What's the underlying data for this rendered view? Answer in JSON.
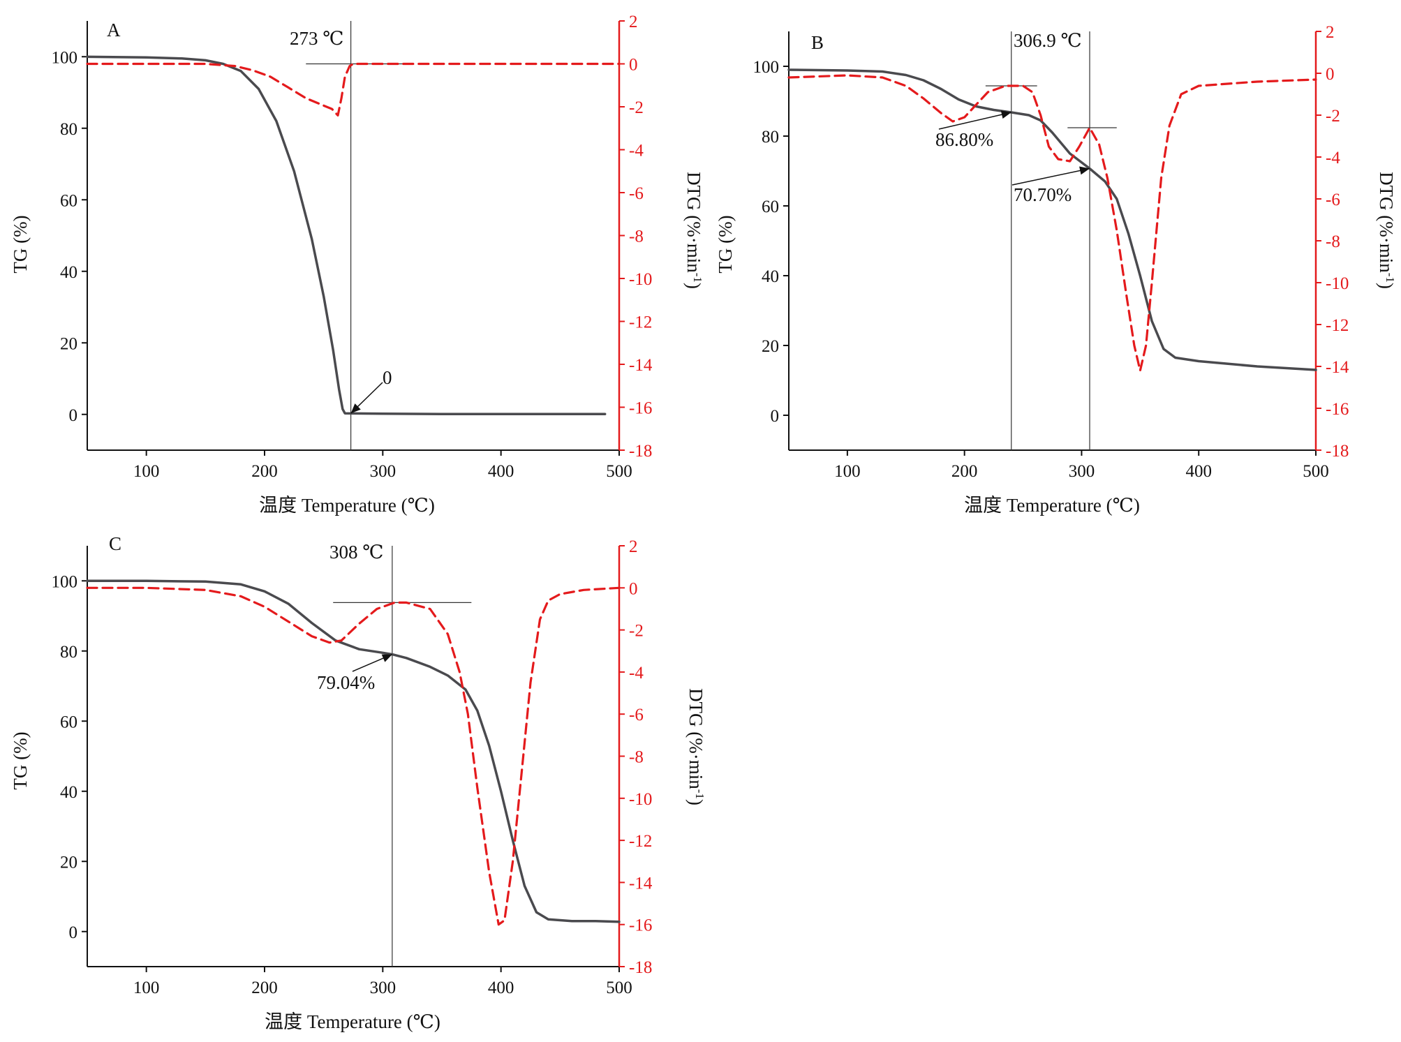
{
  "colors": {
    "tg": "#4a4a4e",
    "dtg": "#e41a1c",
    "axis": "#111111",
    "guide": "#333333"
  },
  "chart_data": [
    {
      "type": "line",
      "panel": "A",
      "xlabel": "温度 Temperature (℃)",
      "ylabel": "TG (%)",
      "y2label": "DTG (%·min-1)",
      "xlim": [
        50,
        500
      ],
      "ylim": [
        -10,
        110
      ],
      "y2lim": [
        -18,
        2
      ],
      "xticks": [
        100,
        200,
        300,
        400,
        500
      ],
      "yticks": [
        0,
        20,
        40,
        60,
        80,
        100
      ],
      "y2ticks": [
        2,
        0,
        -2,
        -4,
        -6,
        -8,
        -10,
        -12,
        -14,
        -16,
        -18
      ],
      "annotations": [
        "273 ℃",
        "0"
      ],
      "series": [
        {
          "role": "TG",
          "axis": "left",
          "style": "solid",
          "x": [
            50,
            100,
            130,
            150,
            165,
            180,
            195,
            210,
            225,
            240,
            250,
            258,
            263,
            266,
            268,
            300,
            350,
            400,
            450,
            488
          ],
          "y": [
            100,
            99.8,
            99.5,
            99,
            98,
            96,
            91,
            82,
            68,
            49,
            33,
            18,
            7,
            1.5,
            0.3,
            0.2,
            0.1,
            0.1,
            0.1,
            0.1
          ]
        },
        {
          "role": "DTG",
          "axis": "right",
          "style": "dashed",
          "x": [
            50,
            100,
            150,
            175,
            190,
            205,
            220,
            235,
            248,
            257,
            262,
            265,
            268,
            272,
            275,
            300,
            400,
            500
          ],
          "y": [
            0,
            0,
            0,
            -0.1,
            -0.3,
            -0.6,
            -1.1,
            -1.6,
            -1.9,
            -2.1,
            -2.4,
            -1.6,
            -0.6,
            -0.1,
            0,
            0,
            0,
            0
          ]
        }
      ],
      "guides": {
        "vline_x": 273,
        "hline_y2": 0,
        "hline_x": [
          235,
          322
        ]
      }
    },
    {
      "type": "line",
      "panel": "B",
      "xlabel": "温度 Temperature (℃)",
      "ylabel": "TG (%)",
      "y2label": "DTG (%·min-1)",
      "xlim": [
        50,
        500
      ],
      "ylim": [
        -10,
        110
      ],
      "y2lim": [
        -18,
        2
      ],
      "xticks": [
        100,
        200,
        300,
        400,
        500
      ],
      "yticks": [
        0,
        20,
        40,
        60,
        80,
        100
      ],
      "y2ticks": [
        2,
        0,
        -2,
        -4,
        -6,
        -8,
        -10,
        -12,
        -14,
        -16,
        -18
      ],
      "annotations": [
        "306.9 ℃",
        "86.80%",
        "70.70%"
      ],
      "series": [
        {
          "role": "TG",
          "axis": "left",
          "style": "solid",
          "x": [
            50,
            100,
            130,
            150,
            165,
            180,
            195,
            210,
            225,
            240,
            255,
            265,
            275,
            290,
            306.9,
            320,
            330,
            340,
            350,
            360,
            370,
            380,
            400,
            450,
            500
          ],
          "y": [
            99,
            98.8,
            98.5,
            97.5,
            96,
            93.5,
            90.5,
            88.5,
            87.5,
            86.8,
            86,
            84.5,
            81,
            75,
            70.7,
            67,
            62,
            52,
            40,
            27,
            19,
            16.5,
            15.5,
            14,
            13
          ]
        },
        {
          "role": "DTG",
          "axis": "right",
          "style": "dashed",
          "x": [
            50,
            100,
            130,
            150,
            165,
            180,
            190,
            200,
            210,
            220,
            235,
            250,
            258,
            265,
            272,
            280,
            290,
            298,
            306.9,
            315,
            322,
            330,
            338,
            345,
            350,
            355,
            360,
            368,
            375,
            385,
            400,
            450,
            500
          ],
          "y": [
            -0.2,
            -0.1,
            -0.2,
            -0.6,
            -1.2,
            -1.9,
            -2.3,
            -2.1,
            -1.5,
            -0.9,
            -0.6,
            -0.6,
            -0.9,
            -2,
            -3.5,
            -4.1,
            -4.2,
            -3.5,
            -2.6,
            -3.4,
            -5,
            -7.5,
            -10.5,
            -13,
            -14.2,
            -13,
            -10,
            -5,
            -2.5,
            -1,
            -0.6,
            -0.4,
            -0.3
          ]
        }
      ],
      "guides": {
        "vline_x": [
          240,
          306.9
        ],
        "hline_y2": [
          -0.6,
          -2.6
        ],
        "hline_x": [
          [
            218,
            262
          ],
          [
            288,
            330
          ]
        ]
      }
    },
    {
      "type": "line",
      "panel": "C",
      "xlabel": "温度 Temperature (℃)",
      "ylabel": "TG (%)",
      "y2label": "DTG (%·min-1)",
      "xlim": [
        50,
        500
      ],
      "ylim": [
        -10,
        110
      ],
      "y2lim": [
        -18,
        2
      ],
      "xticks": [
        100,
        200,
        300,
        400,
        500
      ],
      "yticks": [
        0,
        20,
        40,
        60,
        80,
        100
      ],
      "y2ticks": [
        2,
        0,
        -2,
        -4,
        -6,
        -8,
        -10,
        -12,
        -14,
        -16,
        -18
      ],
      "annotations": [
        "308 ℃",
        "79.04%"
      ],
      "series": [
        {
          "role": "TG",
          "axis": "left",
          "style": "solid",
          "x": [
            50,
            100,
            150,
            180,
            200,
            220,
            240,
            260,
            280,
            300,
            308,
            320,
            340,
            355,
            370,
            380,
            390,
            400,
            410,
            420,
            430,
            440,
            460,
            480,
            500
          ],
          "y": [
            100,
            100,
            99.8,
            99,
            97,
            93.5,
            88,
            83,
            80.5,
            79.5,
            79.04,
            78,
            75.5,
            73,
            69,
            63,
            53,
            40,
            26,
            13,
            5.5,
            3.5,
            3,
            3,
            2.8
          ]
        },
        {
          "role": "DTG",
          "axis": "right",
          "style": "dashed",
          "x": [
            50,
            100,
            150,
            180,
            200,
            220,
            240,
            255,
            265,
            280,
            295,
            310,
            320,
            340,
            355,
            365,
            372,
            380,
            390,
            398,
            403,
            410,
            418,
            425,
            433,
            440,
            450,
            470,
            500
          ],
          "y": [
            0,
            0,
            -0.1,
            -0.4,
            -0.9,
            -1.6,
            -2.3,
            -2.6,
            -2.5,
            -1.7,
            -1,
            -0.7,
            -0.7,
            -1,
            -2.2,
            -4,
            -6,
            -9.5,
            -13.5,
            -16,
            -15.8,
            -13,
            -8.5,
            -4.5,
            -1.5,
            -0.6,
            -0.3,
            -0.1,
            0
          ]
        }
      ],
      "guides": {
        "vline_x": 308,
        "hline_y2": -0.7,
        "hline_x": [
          258,
          375
        ]
      }
    }
  ],
  "panels": [
    {
      "label": "A",
      "xlabel": "温度 Temperature (℃)",
      "ylabel": "TG (%)",
      "y2label_main": "DTG (%·min",
      "y2label_sup": "-1",
      "y2label_end": ")",
      "xticks": [
        "100",
        "200",
        "300",
        "400",
        "500"
      ],
      "yticks": [
        "0",
        "20",
        "40",
        "60",
        "80",
        "100"
      ],
      "y2ticks": [
        "2",
        "0",
        "-2",
        "-4",
        "-6",
        "-8",
        "-10",
        "-12",
        "-14",
        "-16",
        "-18"
      ],
      "annotations": [
        {
          "text": "273 ℃"
        },
        {
          "text": "0"
        }
      ]
    },
    {
      "label": "B",
      "xlabel": "温度 Temperature (℃)",
      "ylabel": "TG (%)",
      "y2label_main": "DTG (%·min",
      "y2label_sup": "-1",
      "y2label_end": ")",
      "xticks": [
        "100",
        "200",
        "300",
        "400",
        "500"
      ],
      "yticks": [
        "0",
        "20",
        "40",
        "60",
        "80",
        "100"
      ],
      "y2ticks": [
        "2",
        "0",
        "-2",
        "-4",
        "-6",
        "-8",
        "-10",
        "-12",
        "-14",
        "-16",
        "-18"
      ],
      "annotations": [
        {
          "text": "306.9 ℃"
        },
        {
          "text": "86.80%"
        },
        {
          "text": "70.70%"
        }
      ]
    },
    {
      "label": "C",
      "xlabel": "温度 Temperature (℃)",
      "ylabel": "TG (%)",
      "y2label_main": "DTG (%·min",
      "y2label_sup": "-1",
      "y2label_end": ")",
      "xticks": [
        "100",
        "200",
        "300",
        "400",
        "500"
      ],
      "yticks": [
        "0",
        "20",
        "40",
        "60",
        "80",
        "100"
      ],
      "y2ticks": [
        "2",
        "0",
        "-2",
        "-4",
        "-6",
        "-8",
        "-10",
        "-12",
        "-14",
        "-16",
        "-18"
      ],
      "annotations": [
        {
          "text": "308 ℃"
        },
        {
          "text": "79.04%"
        }
      ]
    }
  ]
}
